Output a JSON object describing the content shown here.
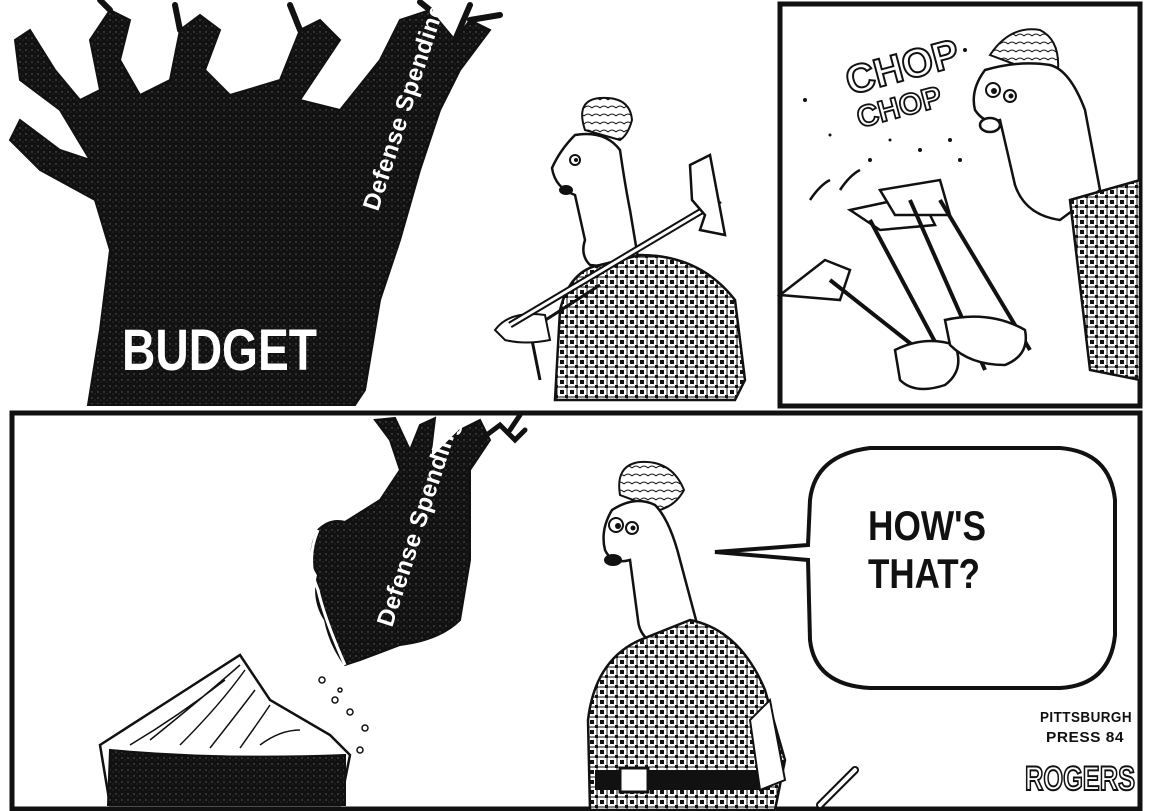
{
  "comic": {
    "panel1": {
      "tree_label": "BUDGET",
      "branch_label": "Defense Spending"
    },
    "panel2": {
      "sound_effect_line1": "CHOP",
      "sound_effect_line2": "CHOP"
    },
    "panel3": {
      "branch_label": "Defense Spending",
      "speech_line1": "HOW'S",
      "speech_line2": "THAT?"
    },
    "signature": {
      "line1": "PITTSBURGH",
      "line2": "PRESS 84",
      "artist": "ROGERS"
    }
  },
  "colors": {
    "ink": "#111111",
    "paper": "#ffffff",
    "hatch": "#555555"
  }
}
